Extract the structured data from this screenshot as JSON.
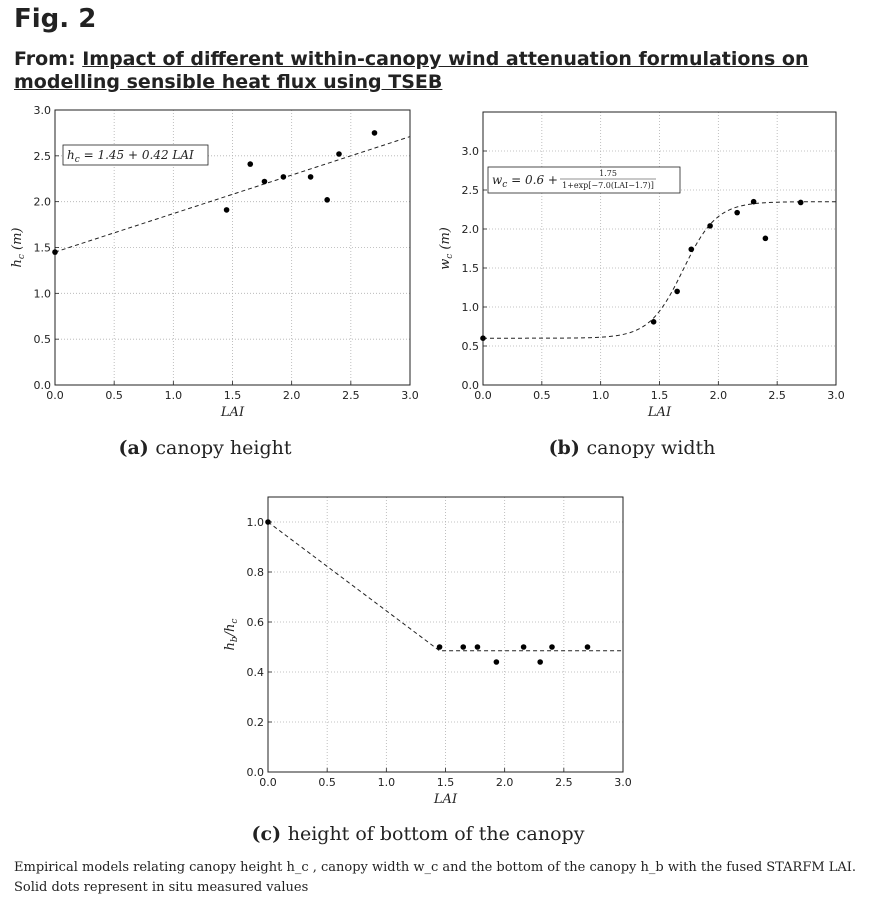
{
  "header": {
    "fig_label": "Fig. 2",
    "from_prefix": "From: ",
    "title_link": "Impact of different within-canopy wind attenuation formulations on modelling sensible heat flux using TSEB"
  },
  "caption": {
    "text": "Empirical models relating canopy height h_c , canopy width w_c and the bottom of the canopy h_b with the fused STARFM LAI. Solid dots represent in situ measured values"
  },
  "chart_data": [
    {
      "type": "scatter",
      "panel": "a",
      "subcaption_letter": "(a)",
      "subcaption_text": "canopy height",
      "xlabel": "LAI",
      "ylabel": "h_c (m)",
      "xlim": [
        0,
        3
      ],
      "ylim": [
        0,
        3
      ],
      "xticks": [
        "0.0",
        "0.5",
        "1.0",
        "1.5",
        "2.0",
        "2.5",
        "3.0"
      ],
      "yticks": [
        "0.0",
        "0.5",
        "1.0",
        "1.5",
        "2.0",
        "2.5",
        "3.0"
      ],
      "grid": true,
      "equation": "h_c = 1.45 + 0.42 LAI",
      "fit": {
        "kind": "linear",
        "a": 1.45,
        "b": 0.42
      },
      "points": [
        {
          "x": 0.0,
          "y": 1.45
        },
        {
          "x": 1.45,
          "y": 1.91
        },
        {
          "x": 1.65,
          "y": 2.41
        },
        {
          "x": 1.77,
          "y": 2.22
        },
        {
          "x": 1.93,
          "y": 2.27
        },
        {
          "x": 2.16,
          "y": 2.27
        },
        {
          "x": 2.3,
          "y": 2.02
        },
        {
          "x": 2.4,
          "y": 2.52
        },
        {
          "x": 2.7,
          "y": 2.75
        }
      ]
    },
    {
      "type": "scatter",
      "panel": "b",
      "subcaption_letter": "(b)",
      "subcaption_text": "canopy width",
      "xlabel": "LAI",
      "ylabel": "w_c (m)",
      "xlim": [
        0,
        3
      ],
      "ylim": [
        0,
        3.5
      ],
      "xticks": [
        "0.0",
        "0.5",
        "1.0",
        "1.5",
        "2.0",
        "2.5",
        "3.0"
      ],
      "yticks": [
        "0.0",
        "0.5",
        "1.0",
        "1.5",
        "2.0",
        "2.5",
        "3.0"
      ],
      "grid": true,
      "equation_main": "w_c = 0.6 +",
      "equation_num": "1.75",
      "equation_den": "1+exp[−7.0(LAI−1.7)]",
      "fit": {
        "kind": "logistic",
        "base": 0.6,
        "amp": 1.75,
        "k": 7.0,
        "x0": 1.7
      },
      "points": [
        {
          "x": 0.0,
          "y": 0.6
        },
        {
          "x": 1.45,
          "y": 0.81
        },
        {
          "x": 1.65,
          "y": 1.2
        },
        {
          "x": 1.77,
          "y": 1.74
        },
        {
          "x": 1.93,
          "y": 2.04
        },
        {
          "x": 2.16,
          "y": 2.21
        },
        {
          "x": 2.3,
          "y": 2.35
        },
        {
          "x": 2.4,
          "y": 1.88
        },
        {
          "x": 2.7,
          "y": 2.34
        }
      ]
    },
    {
      "type": "scatter",
      "panel": "c",
      "subcaption_letter": "(c)",
      "subcaption_text": "height of bottom of the canopy",
      "xlabel": "LAI",
      "ylabel": "h_b/h_c",
      "xlim": [
        0,
        3
      ],
      "ylim": [
        0,
        1.1
      ],
      "xticks": [
        "0.0",
        "0.5",
        "1.0",
        "1.5",
        "2.0",
        "2.5",
        "3.0"
      ],
      "yticks": [
        "0.0",
        "0.2",
        "0.4",
        "0.6",
        "0.8",
        "1.0"
      ],
      "grid": true,
      "fit": {
        "kind": "piecewise",
        "points": [
          [
            0,
            1.0
          ],
          [
            1.45,
            0.485
          ],
          [
            3.0,
            0.485
          ]
        ]
      },
      "points": [
        {
          "x": 0.0,
          "y": 1.0
        },
        {
          "x": 1.45,
          "y": 0.5
        },
        {
          "x": 1.65,
          "y": 0.5
        },
        {
          "x": 1.77,
          "y": 0.5
        },
        {
          "x": 1.93,
          "y": 0.44
        },
        {
          "x": 2.16,
          "y": 0.5
        },
        {
          "x": 2.3,
          "y": 0.44
        },
        {
          "x": 2.4,
          "y": 0.5
        },
        {
          "x": 2.7,
          "y": 0.5
        }
      ]
    }
  ]
}
